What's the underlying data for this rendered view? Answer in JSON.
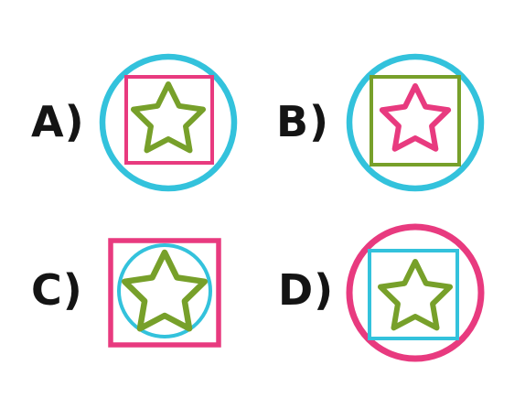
{
  "colors": {
    "cyan": "#33c2dc",
    "pink": "#e83a7f",
    "green": "#77a02a",
    "label": "#141414",
    "background": "#ffffff"
  },
  "options": [
    {
      "label": "A)",
      "outer_shape": "circle",
      "outer_color": "cyan",
      "inner_shape": "square",
      "inner_color": "pink",
      "star_color": "green"
    },
    {
      "label": "B)",
      "outer_shape": "circle",
      "outer_color": "cyan",
      "inner_shape": "square",
      "inner_color": "green",
      "star_color": "pink"
    },
    {
      "label": "C)",
      "outer_shape": "square",
      "outer_color": "pink",
      "inner_shape": "circle",
      "inner_color": "cyan",
      "star_color": "green"
    },
    {
      "label": "D)",
      "outer_shape": "circle",
      "outer_color": "pink",
      "inner_shape": "square",
      "inner_color": "cyan",
      "star_color": "green"
    }
  ]
}
